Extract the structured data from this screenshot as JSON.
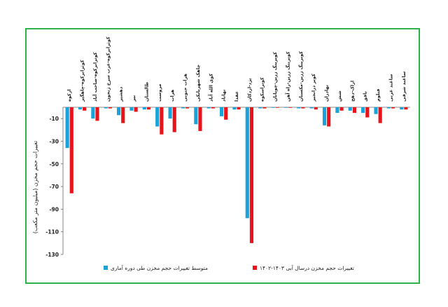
{
  "chart_data": {
    "type": "bar",
    "title": "",
    "xlabel": "",
    "ylabel": "تغییرات حجم مخزن (میلیون متر مکعب)",
    "ylim": [
      -130,
      0
    ],
    "yticks": [
      -10,
      -30,
      -50,
      -70,
      -90,
      -110,
      -130
    ],
    "ytick_labels": [
      "-10",
      "-30",
      "-50",
      "-70",
      "-90",
      "-110",
      "-130"
    ],
    "grid": false,
    "legend_position": "bottom",
    "categories": [
      "ارکوه",
      "کوثرابرکوه-چاهگیر",
      "کوثرابرکوه-صاحب آباد",
      "کوثرابرکوه-عرب سرخ زنجون",
      "دهشیر",
      "بیر",
      "طالستان",
      "مروست",
      "هرات",
      "هرات جنوبی",
      "چاهک شهربابکی",
      "کوی الله آباد",
      "بهاباد",
      "عقدا",
      "یزد-اردکان",
      "کوبراسکوه",
      "کویرینگ زرین-چوپانان",
      "کویرینگ زرین-راه آهن",
      "کویرینگ زرین-مکستان",
      "کوبر درانجیر",
      "بهادران",
      "شش",
      "اراک-دهج",
      "بافق",
      "فتلوم",
      "ساغند غربی",
      "ساغند شرقی"
    ],
    "series": [
      {
        "name": "متوسط تغییرات حجم مخزن طی دوره آماری",
        "color": "#1aa3d9",
        "values": [
          -36,
          -2,
          -10,
          -1,
          -7,
          -3,
          -2,
          -17,
          -10,
          -1,
          -15,
          -1,
          -8,
          -2,
          -98,
          -1,
          0,
          0,
          -1,
          -1,
          -16,
          -5,
          -3,
          -5,
          -6,
          -1,
          -2
        ]
      },
      {
        "name": "تغییرات حجم مخزن درسال آبی ۱۴۰۳-۱۴۰۲",
        "color": "#e8141c",
        "values": [
          -76,
          -3,
          -12,
          -1,
          -14,
          -4,
          -2,
          -24,
          -22,
          -1,
          -21,
          -1,
          -11,
          -2,
          -120,
          -1,
          0,
          0,
          -1,
          -2,
          -17,
          -3,
          -5,
          -9,
          -14,
          -1,
          -2
        ]
      }
    ]
  }
}
